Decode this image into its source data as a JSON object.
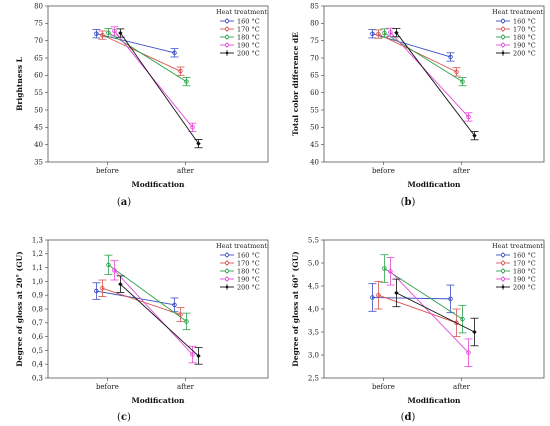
{
  "legend_title": "Heat treatment:",
  "series_names": [
    "160 °C",
    "170 °C",
    "180 °C",
    "190 °C",
    "200 °C"
  ],
  "series_colors": [
    "#3b4fc4",
    "#d9534f",
    "#2ca24a",
    "#e64ad8",
    "#111111"
  ],
  "series_markers": [
    "circle",
    "circle",
    "circle",
    "circle",
    "diamond"
  ],
  "chart_data": [
    {
      "type": "line",
      "caption_letter": "a",
      "categories": [
        "before",
        "after"
      ],
      "xlabel": "Modification",
      "ylabel": "Brightness L",
      "ylim": [
        35,
        80
      ],
      "yticks": [
        "35",
        "40",
        "45",
        "50",
        "55",
        "60",
        "65",
        "70",
        "75",
        "80"
      ],
      "ytick_values": [
        35,
        40,
        45,
        50,
        55,
        60,
        65,
        70,
        75,
        80
      ],
      "series": [
        {
          "values": [
            72.0,
            66.5
          ],
          "err": [
            1.2,
            1.2
          ]
        },
        {
          "values": [
            71.6,
            61.2
          ],
          "err": [
            1.2,
            1.2
          ]
        },
        {
          "values": [
            72.3,
            58.2
          ],
          "err": [
            1.2,
            1.2
          ]
        },
        {
          "values": [
            72.8,
            45.0
          ],
          "err": [
            1.2,
            1.2
          ]
        },
        {
          "values": [
            72.2,
            40.3
          ],
          "err": [
            1.2,
            1.2
          ]
        }
      ]
    },
    {
      "type": "line",
      "caption_letter": "b",
      "categories": [
        "before",
        "after"
      ],
      "xlabel": "Modification",
      "ylabel": "Total color difference dE",
      "ylim": [
        40,
        85
      ],
      "yticks": [
        "40",
        "45",
        "50",
        "55",
        "60",
        "65",
        "70",
        "75",
        "80",
        "85"
      ],
      "ytick_values": [
        40,
        45,
        50,
        55,
        60,
        65,
        70,
        75,
        80,
        85
      ],
      "series": [
        {
          "values": [
            77.0,
            70.3
          ],
          "err": [
            1.2,
            1.2
          ]
        },
        {
          "values": [
            76.9,
            66.0
          ],
          "err": [
            1.2,
            1.2
          ]
        },
        {
          "values": [
            77.2,
            63.2
          ],
          "err": [
            1.2,
            1.2
          ]
        },
        {
          "values": [
            77.4,
            53.0
          ],
          "err": [
            1.2,
            1.2
          ]
        },
        {
          "values": [
            77.3,
            47.6
          ],
          "err": [
            1.2,
            1.2
          ]
        }
      ]
    },
    {
      "type": "line",
      "caption_letter": "c",
      "categories": [
        "before",
        "after"
      ],
      "xlabel": "Modification",
      "ylabel": "Degree of gloss at 20° (GU)",
      "ylim": [
        0.3,
        1.3
      ],
      "yticks": [
        "0,3",
        "0,4",
        "0,5",
        "0,6",
        "0,7",
        "0,8",
        "0,9",
        "1,0",
        "1,1",
        "1,2",
        "1,3"
      ],
      "ytick_values": [
        0.3,
        0.4,
        0.5,
        0.6,
        0.7,
        0.8,
        0.9,
        1.0,
        1.1,
        1.2,
        1.3
      ],
      "series": [
        {
          "values": [
            0.93,
            0.83
          ],
          "err": [
            0.06,
            0.05
          ]
        },
        {
          "values": [
            0.95,
            0.76
          ],
          "err": [
            0.06,
            0.05
          ]
        },
        {
          "values": [
            1.12,
            0.71
          ],
          "err": [
            0.07,
            0.06
          ]
        },
        {
          "values": [
            1.08,
            0.47
          ],
          "err": [
            0.07,
            0.06
          ]
        },
        {
          "values": [
            0.98,
            0.46
          ],
          "err": [
            0.06,
            0.06
          ]
        }
      ]
    },
    {
      "type": "line",
      "caption_letter": "d",
      "categories": [
        "before",
        "after"
      ],
      "xlabel": "Modification",
      "ylabel": "Degree of gloss at 60° (GU)",
      "ylim": [
        2.5,
        5.5
      ],
      "yticks": [
        "2,5",
        "3,0",
        "3,5",
        "4,0",
        "4,5",
        "5,0",
        "5,5"
      ],
      "ytick_values": [
        2.5,
        3.0,
        3.5,
        4.0,
        4.5,
        5.0,
        5.5
      ],
      "series": [
        {
          "values": [
            4.25,
            4.22
          ],
          "err": [
            0.3,
            0.3
          ]
        },
        {
          "values": [
            4.3,
            3.7
          ],
          "err": [
            0.3,
            0.3
          ]
        },
        {
          "values": [
            4.88,
            3.78
          ],
          "err": [
            0.3,
            0.3
          ]
        },
        {
          "values": [
            4.82,
            3.05
          ],
          "err": [
            0.3,
            0.3
          ]
        },
        {
          "values": [
            4.35,
            3.5
          ],
          "err": [
            0.3,
            0.3
          ]
        }
      ]
    }
  ]
}
